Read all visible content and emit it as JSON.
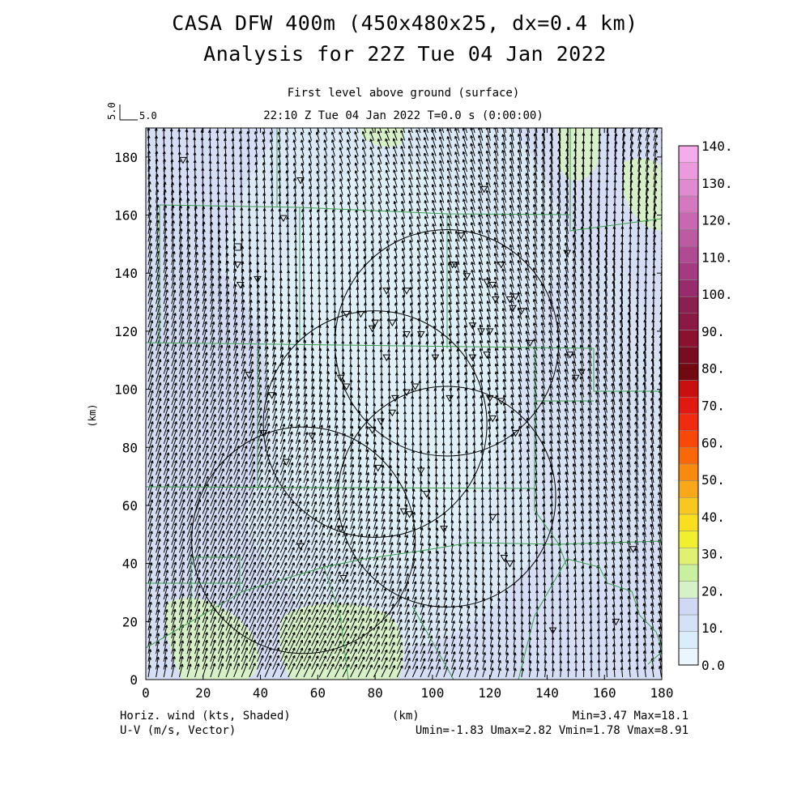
{
  "title": {
    "line1": "CASA DFW 400m (450x480x25, dx=0.4 km)",
    "line2": "Analysis for 22Z Tue 04 Jan 2022"
  },
  "subtitle": {
    "level": "First level above ground (surface)",
    "time": "22:10 Z Tue 04 Jan 2022    T=0.0 s (0:00:00)"
  },
  "vector_ref": {
    "u_label": "5.0",
    "v_label": "5.0"
  },
  "axes": {
    "x_label": "(km)",
    "y_label": "(km)",
    "x_ticks": [
      "0",
      "20",
      "40",
      "60",
      "80",
      "100",
      "120",
      "140",
      "160",
      "180"
    ],
    "y_ticks": [
      "0",
      "20",
      "40",
      "60",
      "80",
      "100",
      "120",
      "140",
      "160",
      "180"
    ]
  },
  "footer": {
    "left1": "Horiz. wind (kts, Shaded)",
    "left2": "U-V (m/s, Vector)",
    "center": "(km)",
    "right1": "Min=3.47 Max=18.1",
    "right2": "Umin=-1.83 Umax=2.82 Vmin=1.78 Vmax=8.91"
  },
  "colorbar": {
    "labels": [
      "0.0",
      "10.",
      "20.",
      "30.",
      "40.",
      "50.",
      "60.",
      "70.",
      "80.",
      "90.",
      "100.",
      "110.",
      "120.",
      "130.",
      "140."
    ],
    "colors": [
      "#eaf6fb",
      "#dbedf8",
      "#d4e2f6",
      "#d0d8f3",
      "#d6f0c8",
      "#c8f0a0",
      "#e0f070",
      "#f0f030",
      "#f8e020",
      "#f8c820",
      "#f8a818",
      "#f88a10",
      "#f86808",
      "#f84808",
      "#f02c10",
      "#e01a10",
      "#c81010",
      "#700a10",
      "#780c20",
      "#8a1230",
      "#8a1a44",
      "#8a2050",
      "#982b6c",
      "#a43a80",
      "#b04a92",
      "#bc5aa2",
      "#c868b0",
      "#d478bf",
      "#e08ad0",
      "#ec9ade",
      "#f4acea"
    ]
  },
  "map_features": {
    "radar_markers": "inverted-triangle-icon",
    "square_marker": "square-icon"
  },
  "chart_data": {
    "type": "map",
    "xlim": [
      0,
      180
    ],
    "ylim": [
      0,
      190
    ],
    "field": "Horiz. wind (kts, Shaded)",
    "vector_field": "U-V (m/s, Vector)",
    "stats": {
      "min": 3.47,
      "max": 18.1,
      "umin": -1.83,
      "umax": 2.82,
      "vmin": 1.78,
      "vmax": 8.91
    },
    "range_rings": [
      {
        "center": [
          105,
          116
        ],
        "radius": 39
      },
      {
        "center": [
          80,
          88
        ],
        "radius": 39
      },
      {
        "center": [
          55,
          48
        ],
        "radius": 39
      },
      {
        "center": [
          105,
          63
        ],
        "radius": 38
      }
    ],
    "radar_sites": [
      [
        13,
        179
      ],
      [
        54,
        172
      ],
      [
        32,
        143
      ],
      [
        33,
        136
      ],
      [
        84,
        134
      ],
      [
        91,
        134
      ],
      [
        75,
        126
      ],
      [
        70,
        126
      ],
      [
        96,
        119
      ],
      [
        79,
        121
      ],
      [
        108,
        143
      ],
      [
        112,
        139
      ],
      [
        119,
        137
      ],
      [
        121,
        136
      ],
      [
        122,
        131
      ],
      [
        127,
        131
      ],
      [
        129,
        132
      ],
      [
        128,
        128
      ],
      [
        131,
        127
      ],
      [
        114,
        122
      ],
      [
        117,
        120
      ],
      [
        120,
        120
      ],
      [
        80,
        123
      ],
      [
        86,
        123
      ],
      [
        91,
        119
      ],
      [
        84,
        111
      ],
      [
        101,
        111
      ],
      [
        114,
        111
      ],
      [
        119,
        112
      ],
      [
        68,
        104
      ],
      [
        70,
        101
      ],
      [
        87,
        97
      ],
      [
        91,
        99
      ],
      [
        94,
        101
      ],
      [
        106,
        97
      ],
      [
        120,
        97
      ],
      [
        124,
        96
      ],
      [
        121,
        90
      ],
      [
        129,
        85
      ],
      [
        79,
        86
      ],
      [
        82,
        89
      ],
      [
        58,
        84
      ],
      [
        41,
        85
      ],
      [
        44,
        98
      ],
      [
        36,
        105
      ],
      [
        81,
        73
      ],
      [
        96,
        72
      ],
      [
        98,
        64
      ],
      [
        121,
        56
      ],
      [
        104,
        52
      ],
      [
        92,
        57
      ],
      [
        90,
        58
      ],
      [
        127,
        40
      ],
      [
        54,
        46
      ],
      [
        69,
        35
      ],
      [
        142,
        17
      ],
      [
        164,
        20
      ],
      [
        170,
        45
      ],
      [
        147,
        147
      ],
      [
        110,
        153
      ],
      [
        124,
        143
      ],
      [
        107,
        143
      ],
      [
        48,
        159
      ],
      [
        118,
        169
      ],
      [
        39,
        138
      ],
      [
        125,
        42
      ],
      [
        150,
        104
      ],
      [
        148,
        112
      ],
      [
        152,
        106
      ],
      [
        134,
        116
      ],
      [
        49,
        75
      ],
      [
        68,
        52
      ],
      [
        86,
        92
      ]
    ],
    "square_site": [
      32,
      149
    ]
  }
}
